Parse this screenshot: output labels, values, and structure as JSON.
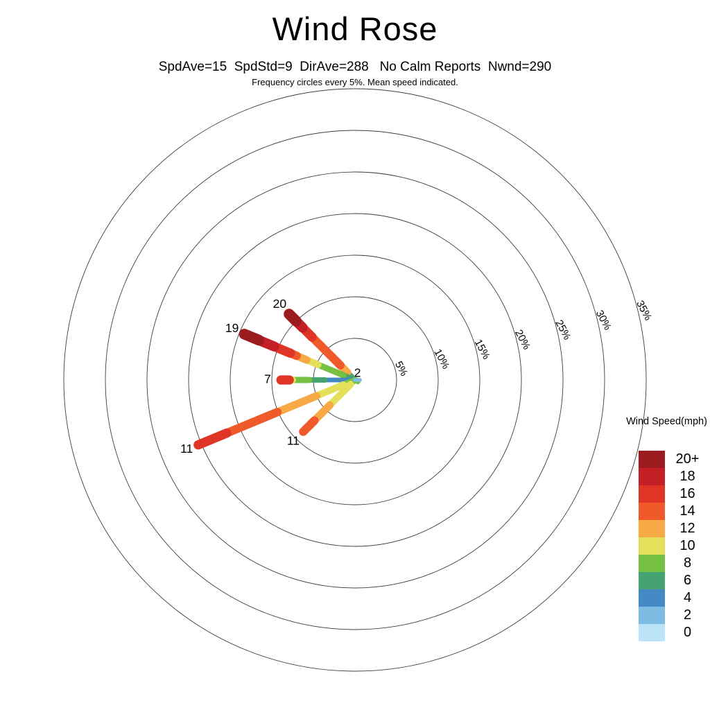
{
  "header": {
    "title": "Wind Rose",
    "stats": "SpdAve=15  SpdStd=9  DirAve=288   No Calm Reports  Nwnd=290",
    "note": "Frequency circles every 5%. Mean speed indicated."
  },
  "legend": {
    "title": "Wind Speed(mph)"
  },
  "chart_data": {
    "type": "wind-rose",
    "title": "Wind Rose",
    "stats": {
      "spd_ave": 15,
      "spd_std": 9,
      "dir_ave": 288,
      "calm": "No Calm Reports",
      "nwnd": 290
    },
    "frequency_ring_step_pct": 5,
    "frequency_rings_pct": [
      5,
      10,
      15,
      20,
      25,
      30,
      35
    ],
    "ring_labels": [
      "5%",
      "10%",
      "15%",
      "20%",
      "25%",
      "30%",
      "35%"
    ],
    "speed_units": "mph",
    "speed_bins": [
      {
        "speed": "0",
        "color": "#BBE3F8"
      },
      {
        "speed": "2",
        "color": "#7EBCE3"
      },
      {
        "speed": "4",
        "color": "#4489C4"
      },
      {
        "speed": "6",
        "color": "#44A371"
      },
      {
        "speed": "8",
        "color": "#76C044"
      },
      {
        "speed": "10",
        "color": "#E5E05A"
      },
      {
        "speed": "12",
        "color": "#F6A944"
      },
      {
        "speed": "14",
        "color": "#F05A2B"
      },
      {
        "speed": "16",
        "color": "#DE3526"
      },
      {
        "speed": "18",
        "color": "#C41F26"
      },
      {
        "speed": "20+",
        "color": "#9B1B1E"
      }
    ],
    "spokes": [
      {
        "direction": "NW",
        "compass_deg": 315,
        "total_frequency_pct": 11.2,
        "mean_speed": 20,
        "mean_label": "20",
        "label_dist_pct": 12.8,
        "label_dy": 0,
        "segments": [
          {
            "bin": "4",
            "from_pct": 0.0,
            "to_pct": 0.5
          },
          {
            "bin": "6",
            "from_pct": 0.5,
            "to_pct": 1.3
          },
          {
            "bin": "12",
            "from_pct": 1.3,
            "to_pct": 2.5
          },
          {
            "bin": "14",
            "from_pct": 2.5,
            "to_pct": 7.3
          },
          {
            "bin": "16",
            "from_pct": 7.3,
            "to_pct": 8.9
          },
          {
            "bin": "18",
            "from_pct": 8.9,
            "to_pct": 10.0
          },
          {
            "bin": "20+",
            "from_pct": 10.0,
            "to_pct": 11.2
          }
        ]
      },
      {
        "direction": "WNW",
        "compass_deg": 292.5,
        "total_frequency_pct": 14.4,
        "mean_speed": 19,
        "mean_label": "19",
        "label_dist_pct": 16.0,
        "label_dy": 0,
        "segments": [
          {
            "bin": "4",
            "from_pct": 0.0,
            "to_pct": 0.4
          },
          {
            "bin": "6",
            "from_pct": 0.4,
            "to_pct": 1.5
          },
          {
            "bin": "8",
            "from_pct": 1.5,
            "to_pct": 4.8
          },
          {
            "bin": "10",
            "from_pct": 4.8,
            "to_pct": 6.3
          },
          {
            "bin": "12",
            "from_pct": 6.3,
            "to_pct": 7.6
          },
          {
            "bin": "14",
            "from_pct": 7.6,
            "to_pct": 8.4
          },
          {
            "bin": "16",
            "from_pct": 8.4,
            "to_pct": 10.5
          },
          {
            "bin": "18",
            "from_pct": 10.5,
            "to_pct": 12.5
          },
          {
            "bin": "20+",
            "from_pct": 12.5,
            "to_pct": 14.4
          }
        ]
      },
      {
        "direction": "W",
        "compass_deg": 270,
        "total_frequency_pct": 8.9,
        "mean_speed": 7,
        "mean_label": "7",
        "label_dist_pct": 10.5,
        "label_dy": 0,
        "segments": [
          {
            "bin": "4",
            "from_pct": 0.0,
            "to_pct": 3.6
          },
          {
            "bin": "6",
            "from_pct": 3.6,
            "to_pct": 5.5
          },
          {
            "bin": "8",
            "from_pct": 5.5,
            "to_pct": 7.5
          },
          {
            "bin": "10",
            "from_pct": 7.5,
            "to_pct": 7.9
          },
          {
            "bin": "16",
            "from_pct": 7.9,
            "to_pct": 8.9
          }
        ]
      },
      {
        "direction": "WSW",
        "compass_deg": 247.5,
        "total_frequency_pct": 20.4,
        "mean_speed": 11,
        "mean_label": "11",
        "label_dist_pct": 21.9,
        "label_dy": 0,
        "segments": [
          {
            "bin": "4",
            "from_pct": 0.0,
            "to_pct": 0.5
          },
          {
            "bin": "8",
            "from_pct": 0.5,
            "to_pct": 1.5
          },
          {
            "bin": "10",
            "from_pct": 1.5,
            "to_pct": 5.0
          },
          {
            "bin": "12",
            "from_pct": 5.0,
            "to_pct": 10.1
          },
          {
            "bin": "14",
            "from_pct": 10.1,
            "to_pct": 16.7
          },
          {
            "bin": "16",
            "from_pct": 16.7,
            "to_pct": 20.4
          }
        ]
      },
      {
        "direction": "SW",
        "compass_deg": 225,
        "total_frequency_pct": 8.8,
        "mean_speed": 11,
        "mean_label": "11",
        "label_dist_pct": 10.5,
        "label_dy": 0,
        "segments": [
          {
            "bin": "4",
            "from_pct": 0.0,
            "to_pct": 0.35
          },
          {
            "bin": "6",
            "from_pct": 0.35,
            "to_pct": 0.7
          },
          {
            "bin": "10",
            "from_pct": 0.7,
            "to_pct": 4.3
          },
          {
            "bin": "12",
            "from_pct": 4.3,
            "to_pct": 6.9
          },
          {
            "bin": "14",
            "from_pct": 6.9,
            "to_pct": 8.8
          }
        ]
      },
      {
        "direction": "ESE",
        "compass_deg": 112.5,
        "total_frequency_pct": 0.35,
        "mean_speed": null,
        "mean_label": "",
        "label_dist_pct": 0,
        "label_dy": 0,
        "segments": [
          {
            "bin": "8",
            "from_pct": 0.0,
            "to_pct": 0.35
          }
        ]
      },
      {
        "direction": "E",
        "compass_deg": 90,
        "total_frequency_pct": 0.6,
        "mean_speed": 2,
        "mean_label": "2",
        "label_dist_pct": 0.3,
        "label_dy": -9,
        "segments": [
          {
            "bin": "2",
            "from_pct": 0.0,
            "to_pct": 0.6
          }
        ]
      }
    ],
    "legend_title": "Wind Speed(mph)",
    "ring_stroke_color": "#3c3c3c"
  }
}
